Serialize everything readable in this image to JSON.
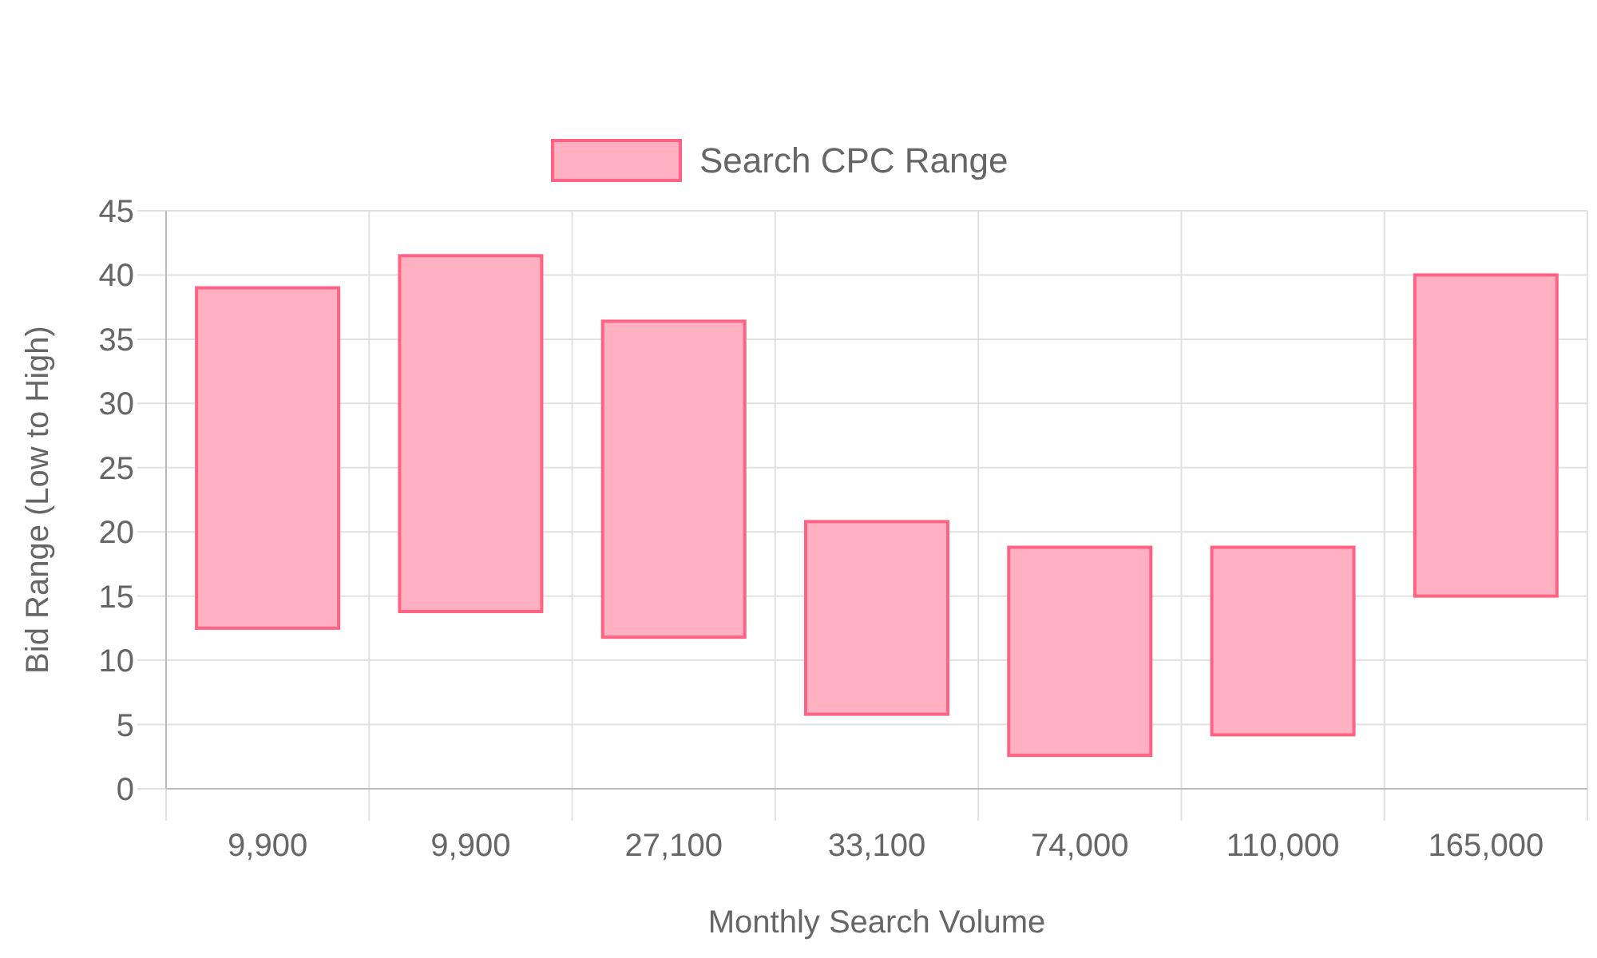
{
  "chart_data": {
    "type": "bar",
    "xlabel": "Monthly Search Volume",
    "ylabel": "Bid Range (Low to High)",
    "categories": [
      "9,900",
      "9,900",
      "27,100",
      "33,100",
      "74,000",
      "110,000",
      "165,000"
    ],
    "series": [
      {
        "name": "Search CPC Range",
        "color": "#ffb1c1",
        "values": [
          26.5,
          27.7,
          24.6,
          15,
          16.2,
          14.6,
          25
        ],
        "base": [
          12.5,
          13.8,
          11.8,
          5.8,
          2.6,
          4.2,
          15
        ]
      }
    ],
    "ylim": [
      0,
      45
    ],
    "yticks": [
      0,
      5,
      10,
      15,
      20,
      25,
      30,
      35,
      40,
      45
    ],
    "grid": true,
    "legend": "top"
  }
}
